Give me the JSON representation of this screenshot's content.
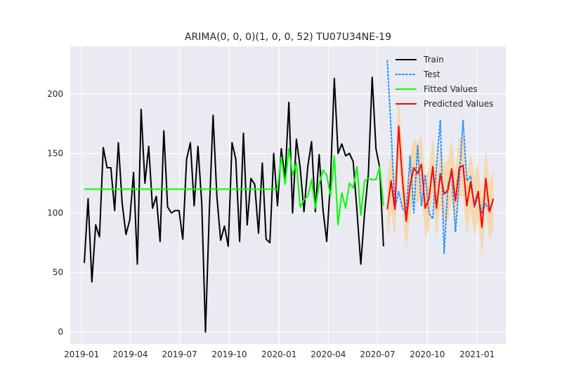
{
  "chart_data": {
    "type": "line",
    "title": "ARIMA(0, 0, 0)(1, 0, 0, 52) TU07U34NE-19",
    "xlabel": "",
    "ylabel": "",
    "xlim": [
      "2018-12-11",
      "2021-02-23"
    ],
    "ylim": [
      -10,
      240
    ],
    "grid": true,
    "legend_position": "top-right",
    "x_ticks": [
      "2019-01-01",
      "2019-04-01",
      "2019-07-01",
      "2019-10-01",
      "2020-01-01",
      "2020-04-01",
      "2020-07-01",
      "2020-10-01",
      "2021-01-01"
    ],
    "x_tick_labels": [
      "2019-01",
      "2019-04",
      "2019-07",
      "2019-10",
      "2020-01",
      "2020-04",
      "2020-07",
      "2020-10",
      "2021-01"
    ],
    "y_ticks": [
      0,
      50,
      100,
      150,
      200
    ],
    "y_tick_labels": [
      "0",
      "50",
      "100",
      "150",
      "200"
    ],
    "colors": {
      "background": "#eaeaf2",
      "grid": "#ffffff",
      "train": "#000000",
      "test": "#1e90ff",
      "fitted": "#00ff00",
      "predicted": "#ff0000",
      "confidence_band": "#f5d6a8"
    },
    "series": [
      {
        "name": "Train",
        "style": "solid",
        "x": [
          "2019-01-06",
          "2019-01-13",
          "2019-01-20",
          "2019-01-27",
          "2019-02-03",
          "2019-02-10",
          "2019-02-17",
          "2019-02-24",
          "2019-03-03",
          "2019-03-10",
          "2019-03-17",
          "2019-03-24",
          "2019-03-31",
          "2019-04-07",
          "2019-04-14",
          "2019-04-21",
          "2019-04-28",
          "2019-05-05",
          "2019-05-12",
          "2019-05-19",
          "2019-05-26",
          "2019-06-02",
          "2019-06-09",
          "2019-06-16",
          "2019-06-23",
          "2019-06-30",
          "2019-07-07",
          "2019-07-14",
          "2019-07-21",
          "2019-07-28",
          "2019-08-04",
          "2019-08-11",
          "2019-08-18",
          "2019-08-25",
          "2019-09-01",
          "2019-09-08",
          "2019-09-15",
          "2019-09-22",
          "2019-09-29",
          "2019-10-06",
          "2019-10-13",
          "2019-10-20",
          "2019-10-27",
          "2019-11-03",
          "2019-11-10",
          "2019-11-17",
          "2019-11-24",
          "2019-12-01",
          "2019-12-08",
          "2019-12-15",
          "2019-12-22",
          "2019-12-29",
          "2020-01-05",
          "2020-01-12",
          "2020-01-19",
          "2020-01-26",
          "2020-02-02",
          "2020-02-09",
          "2020-02-16",
          "2020-02-23",
          "2020-03-01",
          "2020-03-08",
          "2020-03-15",
          "2020-03-22",
          "2020-03-29",
          "2020-04-05",
          "2020-04-12",
          "2020-04-19",
          "2020-04-26",
          "2020-05-03",
          "2020-05-10",
          "2020-05-17",
          "2020-05-24",
          "2020-05-31",
          "2020-06-07",
          "2020-06-14",
          "2020-06-21",
          "2020-06-28",
          "2020-07-05",
          "2020-07-12"
        ],
        "values": [
          58,
          112,
          42,
          90,
          80,
          155,
          138,
          138,
          102,
          159,
          108,
          82,
          94,
          134,
          57,
          187,
          125,
          156,
          104,
          114,
          76,
          169,
          105,
          100,
          102,
          102,
          78,
          145,
          159,
          106,
          156,
          108,
          0,
          100,
          182,
          114,
          77,
          89,
          72,
          159,
          145,
          76,
          167,
          90,
          129,
          124,
          83,
          142,
          78,
          75,
          150,
          106,
          154,
          129,
          193,
          100,
          162,
          138,
          101,
          139,
          160,
          101,
          149,
          103,
          76,
          128,
          213,
          150,
          158,
          148,
          150,
          143,
          101,
          57,
          100,
          133,
          214,
          154,
          138,
          72
        ]
      },
      {
        "name": "Test",
        "style": "dotted",
        "x": [
          "2020-07-19",
          "2020-07-26",
          "2020-08-02",
          "2020-08-09",
          "2020-08-16",
          "2020-08-23",
          "2020-08-30",
          "2020-09-06",
          "2020-09-13",
          "2020-09-20",
          "2020-09-27",
          "2020-10-04",
          "2020-10-11",
          "2020-10-18",
          "2020-10-25",
          "2020-11-01",
          "2020-11-08",
          "2020-11-15",
          "2020-11-22",
          "2020-11-29",
          "2020-12-06",
          "2020-12-13",
          "2020-12-20",
          "2020-12-27",
          "2021-01-03",
          "2021-01-10",
          "2021-01-17",
          "2021-01-24",
          "2021-01-31"
        ],
        "values": [
          228,
          170,
          104,
          118,
          104,
          100,
          148,
          100,
          157,
          106,
          132,
          100,
          95,
          140,
          178,
          66,
          124,
          133,
          84,
          128,
          178,
          127,
          131,
          105,
          114,
          100,
          108,
          101,
          112
        ]
      },
      {
        "name": "Fitted Values",
        "style": "solid",
        "x": [
          "2019-01-06",
          "2019-12-29",
          "2020-01-05",
          "2020-01-12",
          "2020-01-19",
          "2020-01-26",
          "2020-02-02",
          "2020-02-09",
          "2020-02-16",
          "2020-02-23",
          "2020-03-01",
          "2020-03-08",
          "2020-03-15",
          "2020-03-22",
          "2020-03-29",
          "2020-04-05",
          "2020-04-12",
          "2020-04-19",
          "2020-04-26",
          "2020-05-03",
          "2020-05-10",
          "2020-05-17",
          "2020-05-24",
          "2020-05-31",
          "2020-06-07",
          "2020-06-14",
          "2020-06-21",
          "2020-06-28",
          "2020-07-05",
          "2020-07-12"
        ],
        "values": [
          120,
          120,
          147,
          124,
          154,
          132,
          142,
          105,
          111,
          114,
          128,
          104,
          124,
          136,
          132,
          114,
          148,
          90,
          117,
          104,
          125,
          121,
          139,
          98,
          127,
          129,
          128,
          128,
          139,
          106
        ]
      },
      {
        "name": "Predicted Values",
        "style": "solid",
        "x": [
          "2020-07-19",
          "2020-07-26",
          "2020-08-02",
          "2020-08-09",
          "2020-08-16",
          "2020-08-23",
          "2020-08-30",
          "2020-09-06",
          "2020-09-13",
          "2020-09-20",
          "2020-09-27",
          "2020-10-04",
          "2020-10-11",
          "2020-10-18",
          "2020-10-25",
          "2020-11-01",
          "2020-11-08",
          "2020-11-15",
          "2020-11-22",
          "2020-11-29",
          "2020-12-06",
          "2020-12-13",
          "2020-12-20",
          "2020-12-27",
          "2021-01-03",
          "2021-01-10",
          "2021-01-17",
          "2021-01-24",
          "2021-01-31"
        ],
        "values": [
          103,
          127,
          103,
          173,
          128,
          93,
          123,
          138,
          133,
          141,
          104,
          112,
          139,
          104,
          133,
          116,
          119,
          137,
          110,
          138,
          140,
          106,
          126,
          106,
          118,
          88,
          129,
          101,
          112
        ]
      },
      {
        "name": "Confidence Interval",
        "style": "band",
        "x": [
          "2020-07-19",
          "2020-07-26",
          "2020-08-02",
          "2020-08-09",
          "2020-08-16",
          "2020-08-23",
          "2020-08-30",
          "2020-09-06",
          "2020-09-13",
          "2020-09-20",
          "2020-09-27",
          "2020-10-04",
          "2020-10-11",
          "2020-10-18",
          "2020-10-25",
          "2020-11-01",
          "2020-11-08",
          "2020-11-15",
          "2020-11-22",
          "2020-11-29",
          "2020-12-06",
          "2020-12-13",
          "2020-12-20",
          "2020-12-27",
          "2021-01-03",
          "2021-01-10",
          "2021-01-17",
          "2021-01-24",
          "2021-01-31"
        ],
        "lower": [
          78,
          102,
          78,
          148,
          103,
          68,
          98,
          113,
          108,
          116,
          79,
          87,
          114,
          79,
          108,
          91,
          94,
          112,
          85,
          113,
          115,
          81,
          101,
          81,
          93,
          63,
          104,
          76,
          87
        ],
        "upper": [
          128,
          152,
          128,
          198,
          153,
          118,
          148,
          163,
          158,
          166,
          129,
          137,
          164,
          129,
          158,
          141,
          144,
          162,
          135,
          163,
          165,
          131,
          151,
          131,
          143,
          113,
          154,
          126,
          137
        ]
      }
    ],
    "legend": [
      "Train",
      "Test",
      "Fitted Values",
      "Predicted Values"
    ]
  }
}
